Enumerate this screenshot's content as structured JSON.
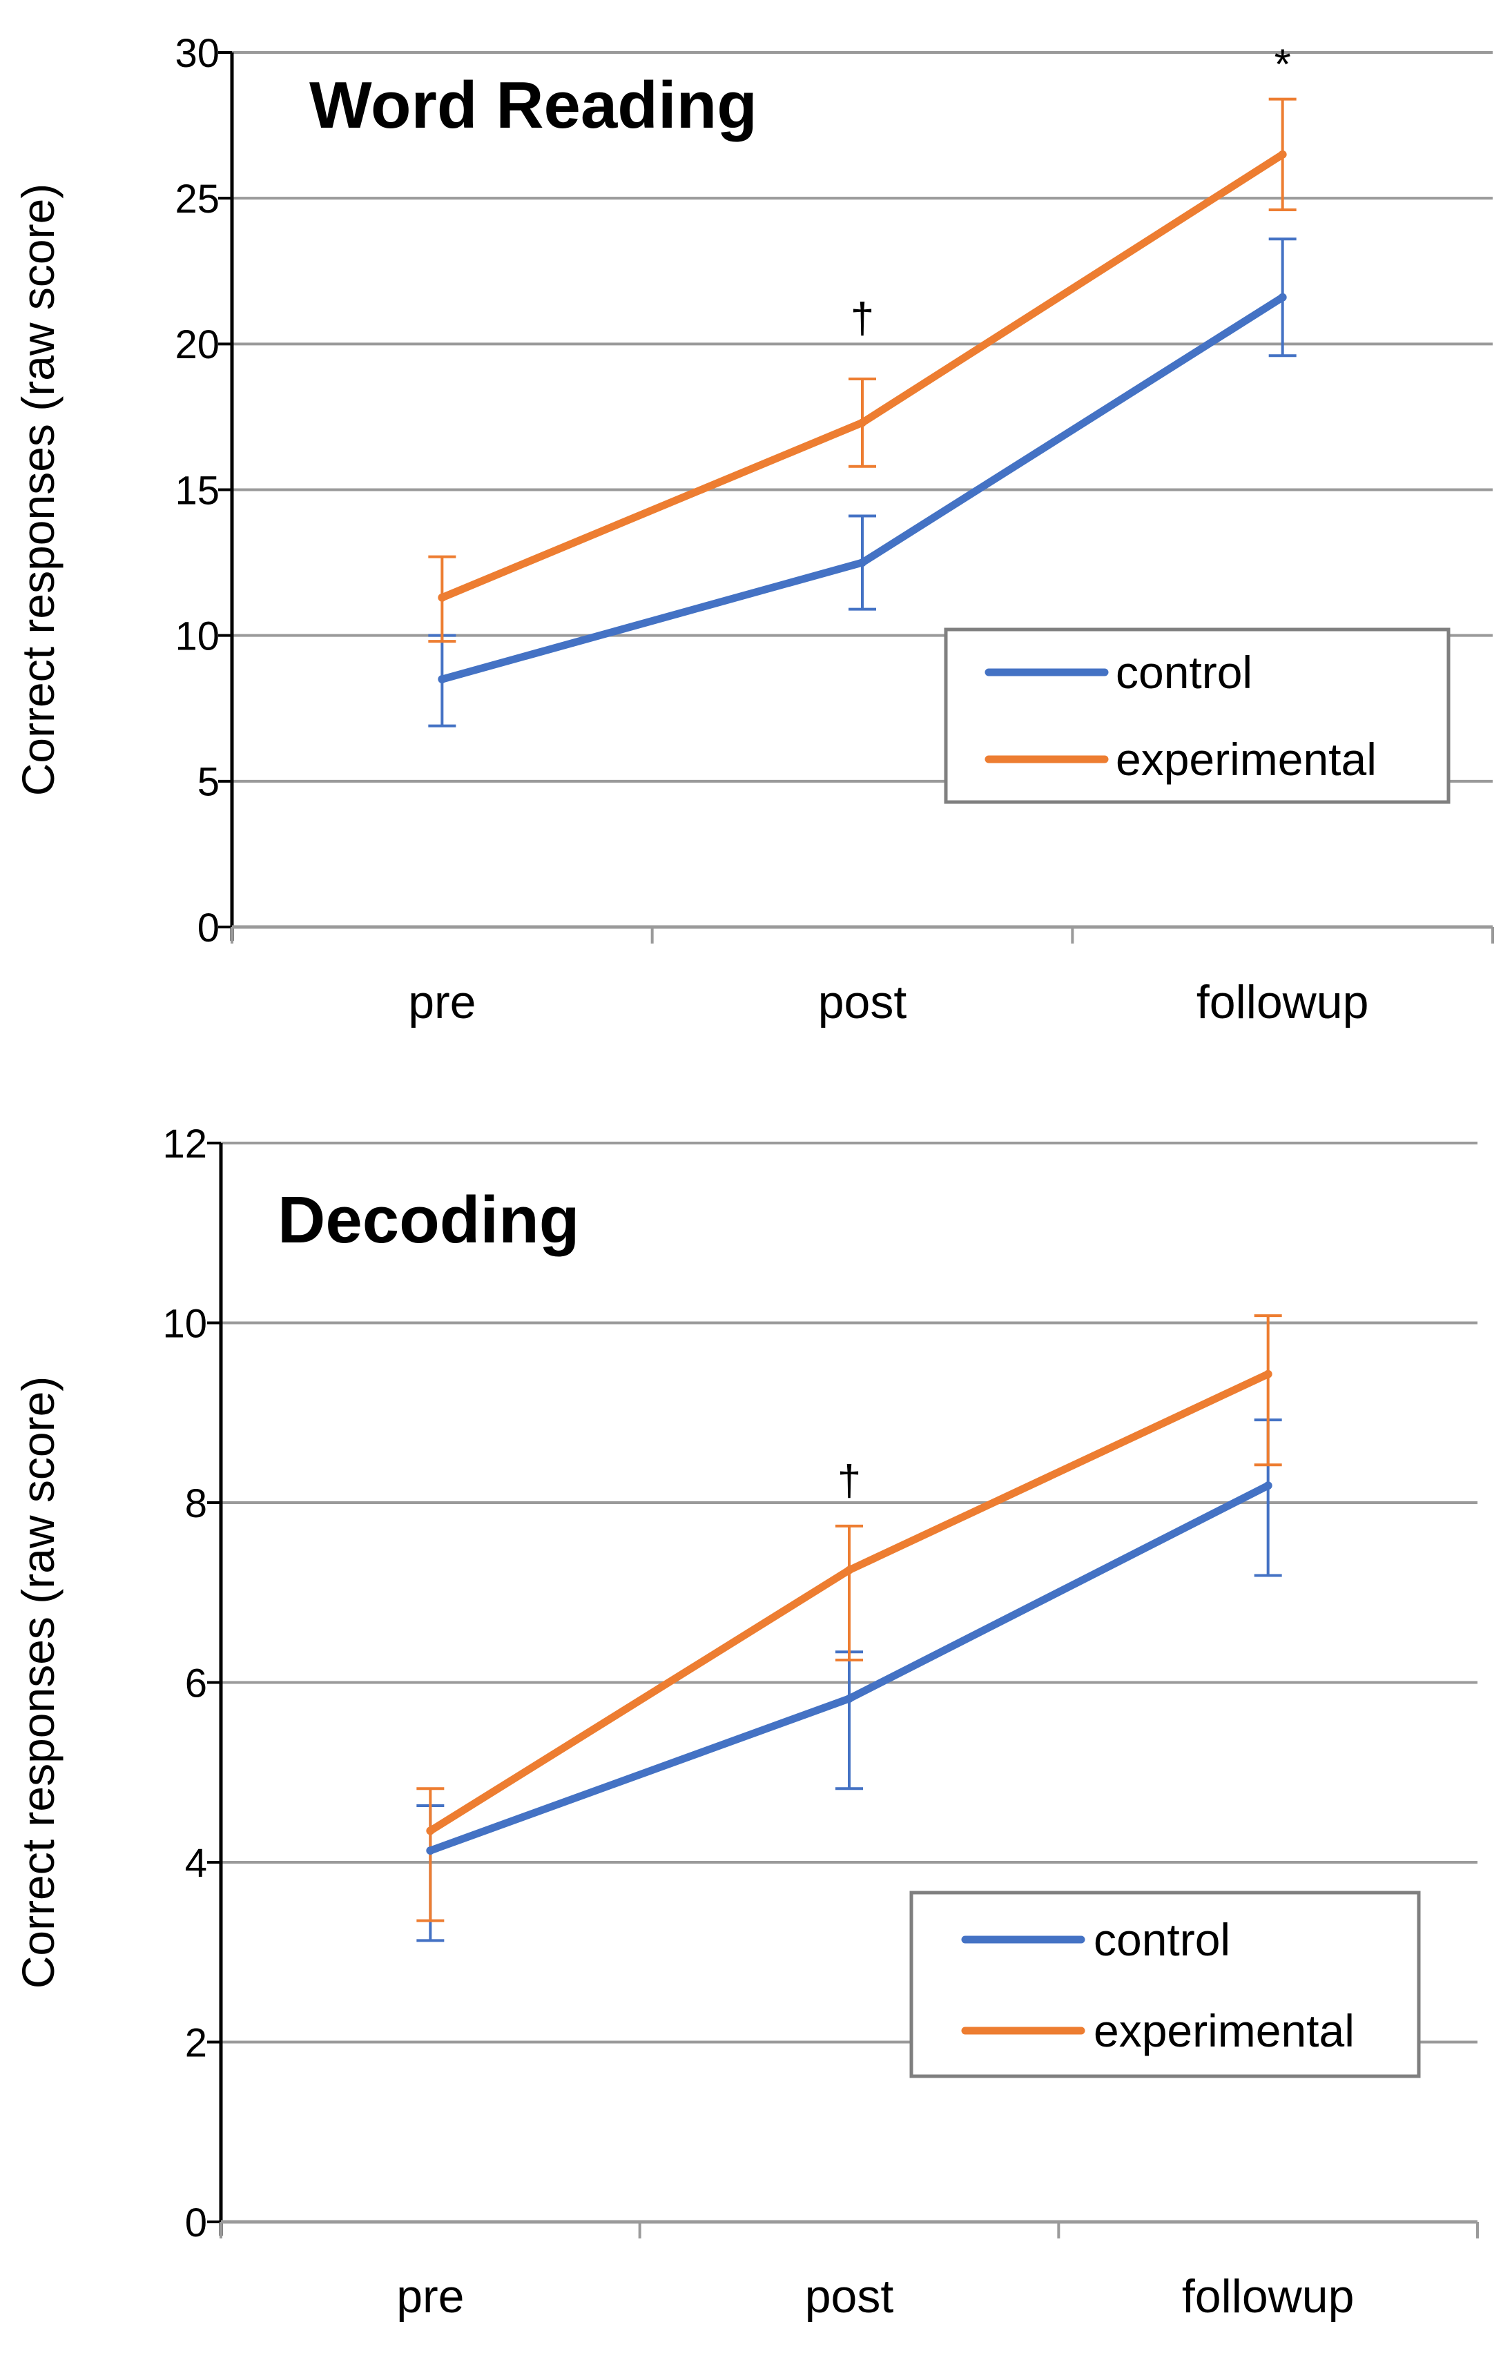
{
  "colors": {
    "control": "#4472C4",
    "experimental": "#ED7D31",
    "axis": "#000000",
    "grid": "#9a9a9a",
    "legend_border": "#7f7f7f"
  },
  "chart_data": [
    {
      "type": "line",
      "title": "Word Reading",
      "xlabel": "",
      "ylabel": "Correct responses (raw score)",
      "categories": [
        "pre",
        "post",
        "followup"
      ],
      "ylim": [
        0,
        30
      ],
      "yticks": [
        "0",
        "5",
        "10",
        "15",
        "20",
        "25",
        "30"
      ],
      "ytick_values": [
        0,
        5,
        10,
        15,
        20,
        25,
        30
      ],
      "grid": true,
      "legend_position": "center-right",
      "series": [
        {
          "name": "control",
          "color_key": "control",
          "values": [
            8.5,
            12.5,
            21.6
          ],
          "err_low": [
            6.9,
            10.9,
            19.6
          ],
          "err_high": [
            10.0,
            14.1,
            23.6
          ]
        },
        {
          "name": "experimental",
          "color_key": "experimental",
          "values": [
            11.3,
            17.3,
            26.5
          ],
          "err_low": [
            9.8,
            15.8,
            24.6
          ],
          "err_high": [
            12.7,
            18.8,
            28.4
          ]
        }
      ],
      "annotations": [
        {
          "text": "†",
          "category_index": 1,
          "y": 20.9
        },
        {
          "text": "*",
          "category_index": 2,
          "y": 29.6
        }
      ]
    },
    {
      "type": "line",
      "title": "Decoding",
      "xlabel": "",
      "ylabel": "Correct responses (raw score)",
      "categories": [
        "pre",
        "post",
        "followup"
      ],
      "ylim": [
        0,
        12
      ],
      "yticks": [
        "0",
        "2",
        "4",
        "6",
        "8",
        "10",
        "12"
      ],
      "ytick_values": [
        0,
        2,
        4,
        6,
        8,
        10,
        12
      ],
      "grid": true,
      "legend_position": "lower-right",
      "series": [
        {
          "name": "control",
          "color_key": "control",
          "values": [
            4.13,
            5.82,
            8.19
          ],
          "err_low": [
            3.13,
            4.82,
            7.19
          ],
          "err_high": [
            4.63,
            6.34,
            8.92
          ]
        },
        {
          "name": "experimental",
          "color_key": "experimental",
          "values": [
            4.35,
            7.25,
            9.43
          ],
          "err_low": [
            3.35,
            6.25,
            8.42
          ],
          "err_high": [
            4.82,
            7.74,
            10.08
          ]
        }
      ],
      "annotations": [
        {
          "text": "†",
          "category_index": 1,
          "y": 8.25
        }
      ]
    }
  ]
}
